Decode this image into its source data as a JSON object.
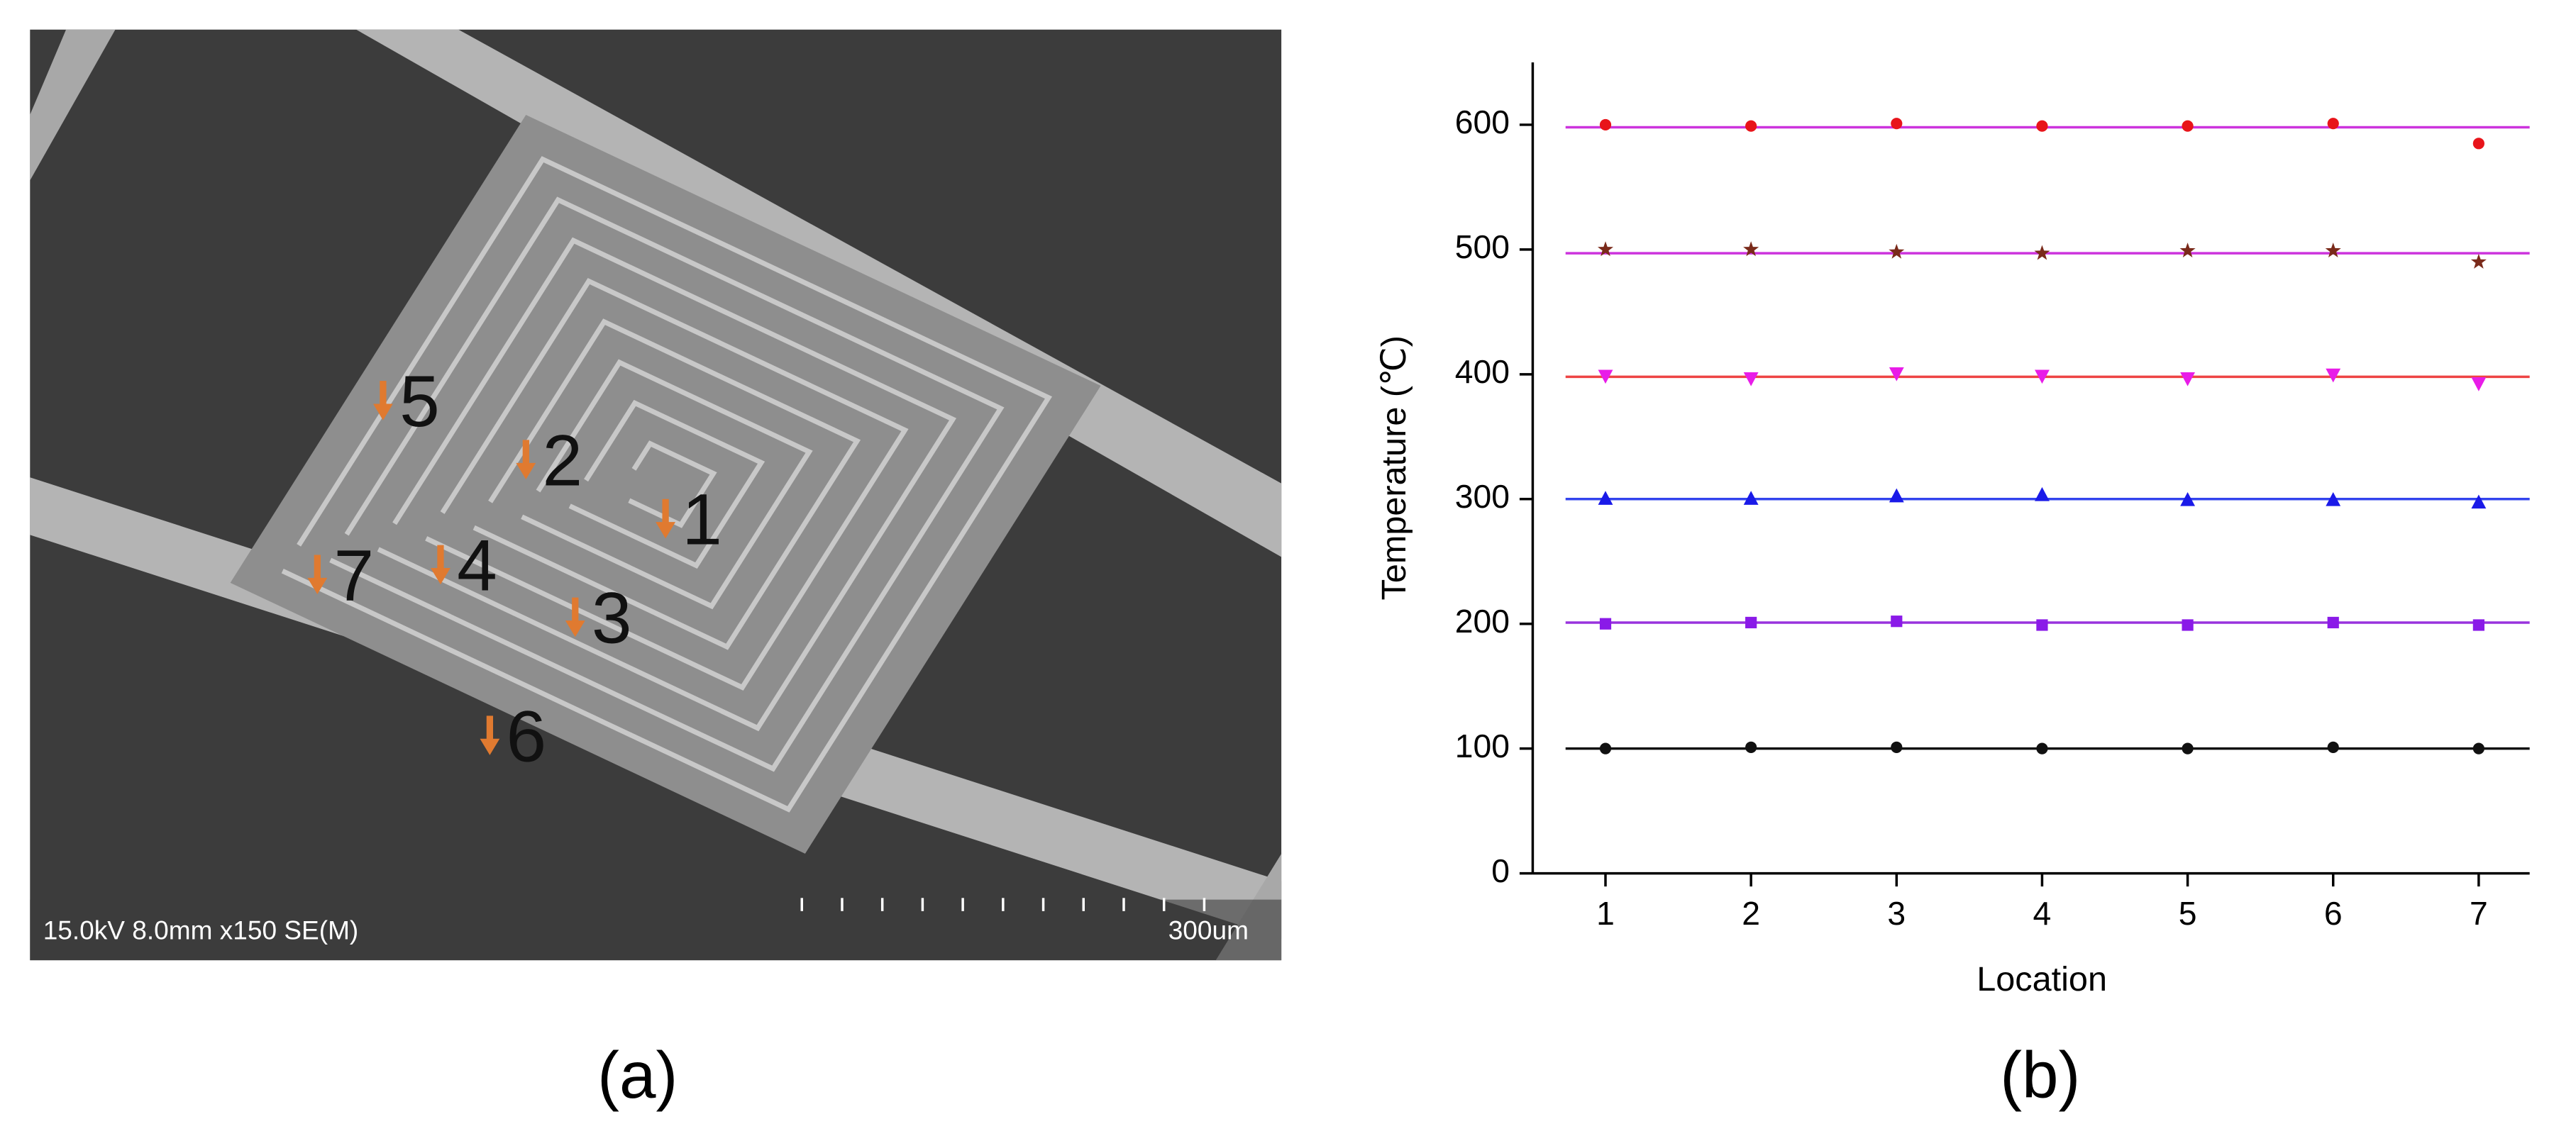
{
  "sem_image": {
    "caption": "15.0kV 8.0mm x150 SE(M)",
    "scale_label": "300um",
    "panel_label": "(a)",
    "markers": [
      {
        "label": "1"
      },
      {
        "label": "2"
      },
      {
        "label": "3"
      },
      {
        "label": "4"
      },
      {
        "label": "5"
      },
      {
        "label": "6"
      },
      {
        "label": "7"
      }
    ]
  },
  "chart_data": {
    "type": "scatter",
    "panel_label": "(b)",
    "x_label": "Location",
    "y_label": "Temperature (℃)",
    "x": [
      1,
      2,
      3,
      4,
      5,
      6,
      7
    ],
    "xlim": [
      0.5,
      7.35
    ],
    "xticks": [
      1,
      2,
      3,
      4,
      5,
      6,
      7
    ],
    "ylim": [
      0,
      650
    ],
    "yticks": [
      0,
      100,
      200,
      300,
      400,
      500,
      600
    ],
    "series": [
      {
        "color": "#e8141a",
        "marker": "circle",
        "values": [
          600,
          599,
          601,
          599,
          599,
          601,
          585
        ]
      },
      {
        "color": "#7a2a1a",
        "marker": "star",
        "values": [
          500,
          500,
          498,
          497,
          499,
          499,
          490
        ]
      },
      {
        "color": "#e81ce8",
        "marker": "triangle-down",
        "values": [
          399,
          397,
          401,
          399,
          397,
          400,
          393
        ]
      },
      {
        "color": "#1a1ae8",
        "marker": "triangle-up",
        "values": [
          300,
          300,
          302,
          303,
          299,
          299,
          297
        ]
      },
      {
        "color": "#8a1ae8",
        "marker": "square",
        "values": [
          200,
          201,
          202,
          199,
          199,
          201,
          199
        ]
      },
      {
        "color": "#111111",
        "marker": "circle",
        "values": [
          100,
          101,
          101,
          100,
          100,
          101,
          100
        ]
      }
    ],
    "fit_lines": [
      {
        "value": 598,
        "color": "#cc33dd"
      },
      {
        "value": 497,
        "color": "#cc33dd"
      },
      {
        "value": 398,
        "color": "#ee4444"
      },
      {
        "value": 300,
        "color": "#3344ee"
      },
      {
        "value": 201,
        "color": "#9933dd"
      },
      {
        "value": 100,
        "color": "#111111"
      }
    ]
  }
}
